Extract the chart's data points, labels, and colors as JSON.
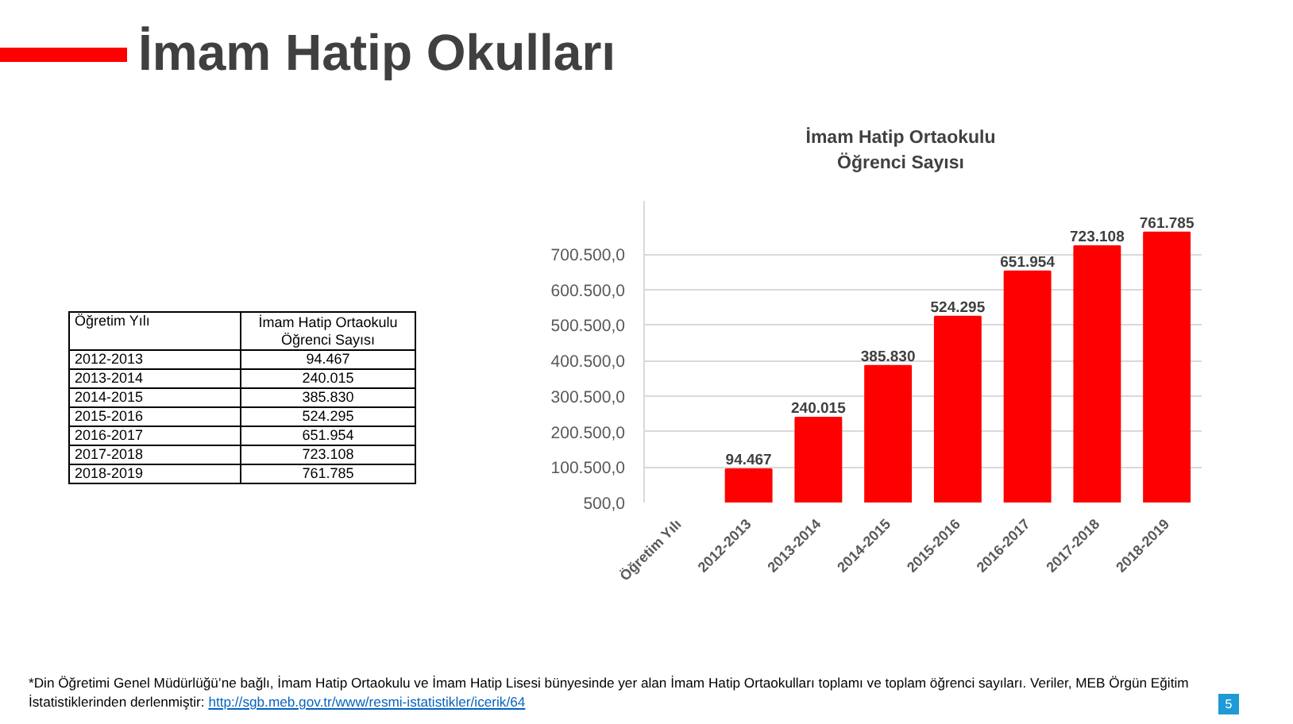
{
  "chart_data": {
    "type": "bar",
    "title": "İmam Hatip Okulları",
    "subtitle": "İmam Hatip Ortaokulu Öğrenci Sayısı",
    "categories": [
      "Öğretim Yılı",
      "2012-2013",
      "2013-2014",
      "2014-2015",
      "2015-2016",
      "2016-2017",
      "2017-2018",
      "2018-2019"
    ],
    "values": [
      null,
      94467,
      240015,
      385830,
      524295,
      651954,
      723108,
      761785
    ],
    "value_labels": [
      null,
      "94.467",
      "240.015",
      "385.830",
      "524.295",
      "651.954",
      "723.108",
      "761.785"
    ],
    "color": "#ff0000",
    "ylim": [
      500,
      850500
    ],
    "yticks": [
      {
        "value": 500,
        "label": "500,0"
      },
      {
        "value": 100500,
        "label": "100.500,0"
      },
      {
        "value": 200500,
        "label": "200.500,0"
      },
      {
        "value": 300500,
        "label": "300.500,0"
      },
      {
        "value": 400500,
        "label": "400.500,0"
      },
      {
        "value": 500500,
        "label": "500.500,0"
      },
      {
        "value": 600500,
        "label": "600.500,0"
      },
      {
        "value": 700500,
        "label": "700.500,0"
      }
    ],
    "grid": "y",
    "annotations": [
      "*Din Öğretimi Genel Müdürlüğü’ne bağlı, İmam Hatip Ortaokulu ve İmam Hatip Lisesi bünyesinde yer alan İmam Hatip Ortaokulları toplamı ve toplam öğrenci sayıları. Veriler, MEB Örgün Eğitim İstatistiklerinden derlenmiştir: http://sgb.meb.gov.tr/www/resmi-istatistikler/icerik/64",
      "5"
    ]
  }
}
